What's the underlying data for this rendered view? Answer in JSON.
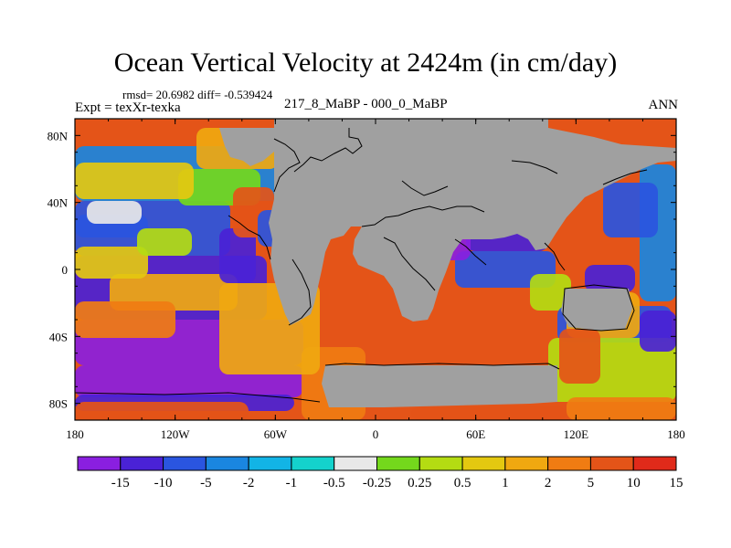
{
  "title": "Ocean Vertical Velocity at 2424m (in cm/day)",
  "stats": "rmsd= 20.6982  diff= -0.539424",
  "experiment": "Expt = texXr-texka",
  "difference_label": "217_8_MaBP - 000_0_MaBP",
  "season": "ANN",
  "map": {
    "land_color": "#a0a0a0",
    "lon_ticks": [
      "180",
      "120W",
      "60W",
      "0",
      "60E",
      "120E",
      "180"
    ],
    "lat_ticks": [
      "80N",
      "40N",
      "0",
      "40S",
      "80S"
    ]
  },
  "colorbar": {
    "colors": [
      "#8a1fe0",
      "#4a22d6",
      "#2a55e0",
      "#1a86e0",
      "#12b4e6",
      "#14d2cc",
      "#e8e8e8",
      "#74d81c",
      "#b4dc12",
      "#e4c810",
      "#f0a810",
      "#f07c12",
      "#e45418",
      "#e02a1a"
    ],
    "labels": [
      "-15",
      "-10",
      "-5",
      "-2",
      "-1",
      "-0.5",
      "-0.25",
      "0.25",
      "0.5",
      "1",
      "2",
      "5",
      "10",
      "15"
    ]
  }
}
